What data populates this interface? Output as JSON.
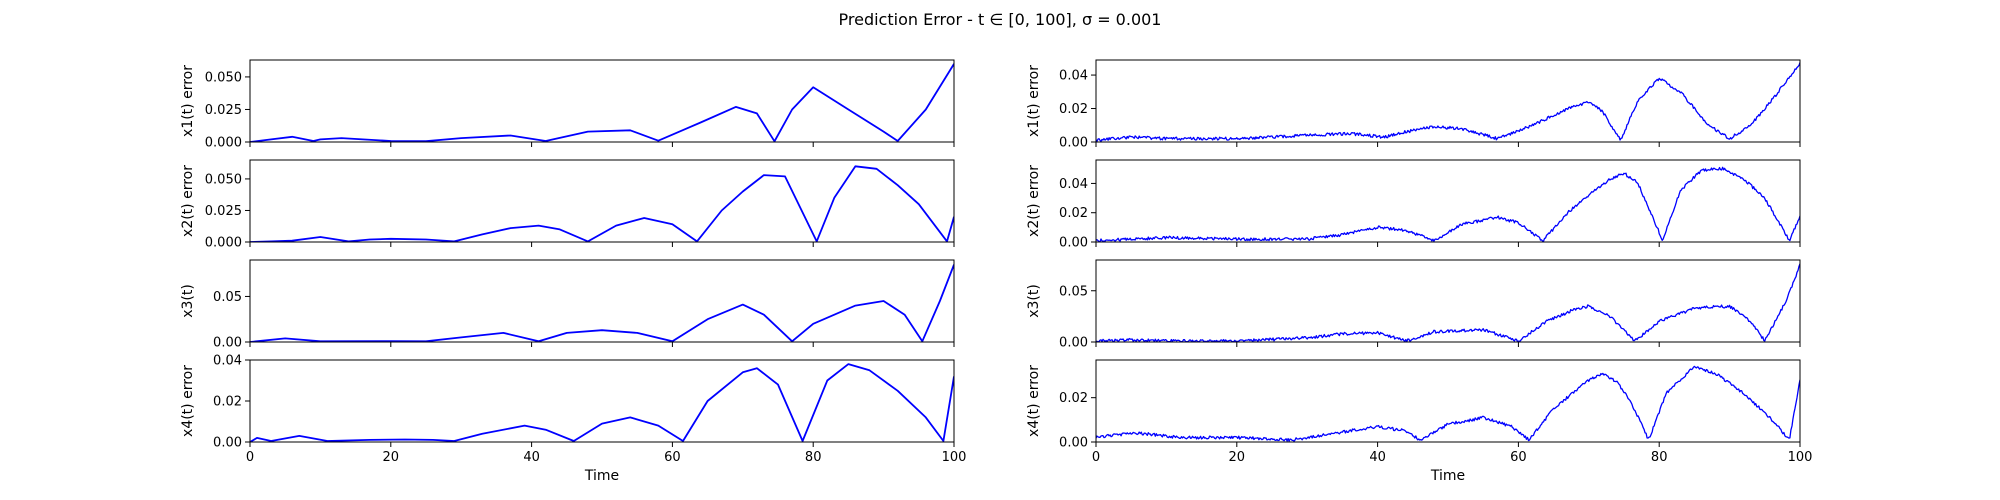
{
  "figure": {
    "title": "Prediction Error - t ∈ [0, 100], σ = 0.001",
    "line_color": "#0000ff"
  },
  "chart_data": [
    {
      "type": "line",
      "ylabel": "x1(t) error",
      "xlabel": "",
      "xlim": [
        0,
        100
      ],
      "ylim": [
        0,
        0.063
      ],
      "yticks": [
        "0.000",
        "0.025",
        "0.050"
      ],
      "ytick_values": [
        0,
        0.025,
        0.05
      ],
      "xticks": [],
      "noisy": false,
      "series": [
        {
          "x": [
            0,
            3,
            6,
            9,
            10,
            13,
            20,
            25,
            30,
            37,
            42,
            48,
            54,
            58,
            64,
            69,
            72,
            74.5,
            77,
            80,
            85,
            90,
            92,
            96,
            100
          ],
          "y": [
            0,
            0.002,
            0.004,
            0.0008,
            0.002,
            0.003,
            0.0008,
            0.0006,
            0.003,
            0.005,
            0.0008,
            0.008,
            0.009,
            0.001,
            0.015,
            0.027,
            0.022,
            0.0005,
            0.025,
            0.042,
            0.025,
            0.008,
            0.0008,
            0.025,
            0.06
          ]
        }
      ]
    },
    {
      "type": "line",
      "ylabel": "x2(t) error",
      "xlabel": "",
      "xlim": [
        0,
        100
      ],
      "ylim": [
        0,
        0.065
      ],
      "yticks": [
        "0.000",
        "0.025",
        "0.050"
      ],
      "ytick_values": [
        0,
        0.025,
        0.05
      ],
      "xticks": [],
      "noisy": false,
      "series": [
        {
          "x": [
            0,
            3,
            6,
            10,
            14,
            17,
            20,
            25,
            29,
            33,
            37,
            41,
            44,
            48,
            52,
            56,
            60,
            63.5,
            67,
            70,
            73,
            76,
            80.5,
            83,
            86,
            89,
            92,
            95,
            99,
            100
          ],
          "y": [
            0,
            0.0005,
            0.001,
            0.004,
            0.0005,
            0.002,
            0.0025,
            0.002,
            0.0005,
            0.006,
            0.011,
            0.013,
            0.01,
            0.0005,
            0.013,
            0.019,
            0.014,
            0.0005,
            0.025,
            0.04,
            0.053,
            0.052,
            0.0005,
            0.035,
            0.06,
            0.058,
            0.045,
            0.03,
            0.0005,
            0.02
          ]
        }
      ]
    },
    {
      "type": "line",
      "ylabel": "x3(t)",
      "xlabel": "",
      "xlim": [
        0,
        100
      ],
      "ylim": [
        0,
        0.09
      ],
      "yticks": [
        "0.00",
        "0.05"
      ],
      "ytick_values": [
        0,
        0.05
      ],
      "xticks": [],
      "noisy": false,
      "series": [
        {
          "x": [
            0,
            5,
            10,
            20,
            25,
            30,
            36,
            41,
            45,
            50,
            55,
            60,
            65,
            70,
            73,
            77,
            80,
            86,
            90,
            93,
            95.5,
            98,
            100
          ],
          "y": [
            0,
            0.004,
            0.0008,
            0.001,
            0.0008,
            0.005,
            0.01,
            0.0008,
            0.01,
            0.013,
            0.01,
            0.0008,
            0.025,
            0.041,
            0.03,
            0.0008,
            0.02,
            0.04,
            0.045,
            0.03,
            0.0008,
            0.045,
            0.085
          ]
        }
      ]
    },
    {
      "type": "line",
      "ylabel": "x4(t) error",
      "xlabel": "Time",
      "xlim": [
        0,
        100
      ],
      "ylim": [
        0,
        0.04
      ],
      "yticks": [
        "0.00",
        "0.02",
        "0.04"
      ],
      "ytick_values": [
        0,
        0.02,
        0.04
      ],
      "xticks": [
        "0",
        "20",
        "40",
        "60",
        "80",
        "100"
      ],
      "xtick_values": [
        0,
        20,
        40,
        60,
        80,
        100
      ],
      "noisy": false,
      "series": [
        {
          "x": [
            0,
            1,
            3,
            7,
            11,
            17,
            22,
            26,
            29,
            33,
            39,
            42,
            46,
            50,
            54,
            58,
            61.5,
            65,
            70,
            72,
            75,
            78.5,
            82,
            85,
            88,
            92,
            96,
            98.5,
            100
          ],
          "y": [
            0,
            0.002,
            0.0005,
            0.003,
            0.0005,
            0.001,
            0.0012,
            0.001,
            0.0005,
            0.004,
            0.008,
            0.006,
            0.0005,
            0.009,
            0.012,
            0.008,
            0.0005,
            0.02,
            0.034,
            0.036,
            0.028,
            0.0005,
            0.03,
            0.038,
            0.035,
            0.025,
            0.012,
            0.0005,
            0.032
          ]
        }
      ]
    },
    {
      "type": "line",
      "ylabel": "x1(t) error",
      "xlabel": "",
      "xlim": [
        0,
        100
      ],
      "ylim": [
        0,
        0.049
      ],
      "yticks": [
        "0.00",
        "0.02",
        "0.04"
      ],
      "ytick_values": [
        0,
        0.02,
        0.04
      ],
      "xticks": [],
      "noisy": true,
      "series": [
        {
          "x": [
            0,
            5,
            10,
            20,
            30,
            36,
            41,
            45,
            48,
            52,
            57,
            62,
            67,
            70,
            72,
            74.5,
            77,
            80,
            83,
            87,
            90,
            93,
            96,
            100
          ],
          "y": [
            0.001,
            0.003,
            0.002,
            0.002,
            0.004,
            0.005,
            0.003,
            0.007,
            0.009,
            0.008,
            0.002,
            0.01,
            0.02,
            0.024,
            0.018,
            0.001,
            0.025,
            0.038,
            0.03,
            0.01,
            0.002,
            0.01,
            0.025,
            0.047
          ]
        }
      ]
    },
    {
      "type": "line",
      "ylabel": "x2(t) error",
      "xlabel": "",
      "xlim": [
        0,
        100
      ],
      "ylim": [
        0,
        0.056
      ],
      "yticks": [
        "0.00",
        "0.02",
        "0.04"
      ],
      "ytick_values": [
        0,
        0.02,
        0.04
      ],
      "xticks": [],
      "noisy": true,
      "series": [
        {
          "x": [
            0,
            5,
            10,
            20,
            30,
            35,
            40,
            44,
            48,
            52,
            57,
            60,
            63.5,
            67,
            70,
            73,
            75,
            77,
            80.5,
            83,
            86,
            89,
            92,
            95,
            98.5,
            100
          ],
          "y": [
            0.001,
            0.002,
            0.003,
            0.002,
            0.002,
            0.005,
            0.01,
            0.008,
            0.001,
            0.012,
            0.017,
            0.013,
            0.001,
            0.02,
            0.032,
            0.043,
            0.047,
            0.04,
            0.001,
            0.035,
            0.049,
            0.05,
            0.043,
            0.03,
            0.001,
            0.018
          ]
        }
      ]
    },
    {
      "type": "line",
      "ylabel": "x3(t)",
      "xlabel": "",
      "xlim": [
        0,
        100
      ],
      "ylim": [
        0,
        0.08
      ],
      "yticks": [
        "0.00",
        "0.05"
      ],
      "ytick_values": [
        0,
        0.05
      ],
      "xticks": [],
      "noisy": true,
      "series": [
        {
          "x": [
            0,
            5,
            10,
            20,
            30,
            35,
            40,
            44,
            48,
            55,
            60,
            64,
            68,
            70,
            73,
            76.5,
            80,
            85,
            90,
            93,
            95,
            98,
            100
          ],
          "y": [
            0.001,
            0.002,
            0.001,
            0.001,
            0.004,
            0.008,
            0.009,
            0.001,
            0.01,
            0.012,
            0.001,
            0.02,
            0.032,
            0.035,
            0.025,
            0.001,
            0.02,
            0.033,
            0.035,
            0.02,
            0.001,
            0.04,
            0.075
          ]
        }
      ]
    },
    {
      "type": "line",
      "ylabel": "x4(t) error",
      "xlabel": "Time",
      "xlim": [
        0,
        100
      ],
      "ylim": [
        0,
        0.037
      ],
      "yticks": [
        "0.00",
        "0.02"
      ],
      "ytick_values": [
        0,
        0.02
      ],
      "xticks": [
        "0",
        "20",
        "40",
        "60",
        "80",
        "100"
      ],
      "xtick_values": [
        0,
        20,
        40,
        60,
        80,
        100
      ],
      "noisy": true,
      "series": [
        {
          "x": [
            0,
            2,
            6,
            12,
            20,
            28,
            34,
            40,
            44,
            46,
            50,
            55,
            59,
            61.5,
            65,
            70,
            72,
            74,
            76,
            78.5,
            81,
            85,
            88,
            92,
            96,
            98.5,
            100
          ],
          "y": [
            0.002,
            0.003,
            0.004,
            0.002,
            0.002,
            0.001,
            0.004,
            0.007,
            0.005,
            0.001,
            0.008,
            0.011,
            0.007,
            0.001,
            0.015,
            0.028,
            0.031,
            0.027,
            0.018,
            0.001,
            0.022,
            0.034,
            0.031,
            0.022,
            0.01,
            0.001,
            0.028
          ]
        }
      ]
    }
  ]
}
